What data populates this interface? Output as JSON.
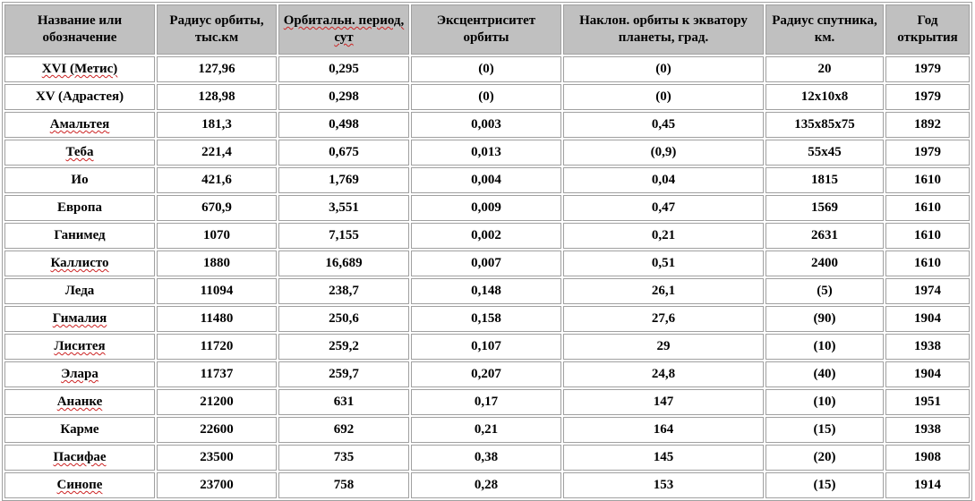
{
  "table": {
    "headers": [
      "Название или обозначение",
      "Радиус орбиты, тыс.км",
      "Орбитальн. период, сут",
      "Эксцентриситет орбиты",
      "Наклон. орбиты к экватору планеты, град.",
      "Радиус спутника, км.",
      "Год открытия"
    ],
    "rows": [
      [
        "XVI (Метис)",
        "127,96",
        "0,295",
        "(0)",
        "(0)",
        "20",
        "1979"
      ],
      [
        "XV (Адрастея)",
        "128,98",
        "0,298",
        "(0)",
        "(0)",
        "12x10x8",
        "1979"
      ],
      [
        "Амальтея",
        "181,3",
        "0,498",
        "0,003",
        "0,45",
        "135x85x75",
        "1892"
      ],
      [
        "Теба",
        "221,4",
        "0,675",
        "0,013",
        "(0,9)",
        "55x45",
        "1979"
      ],
      [
        "Ио",
        "421,6",
        "1,769",
        "0,004",
        "0,04",
        "1815",
        "1610"
      ],
      [
        "Европа",
        "670,9",
        "3,551",
        "0,009",
        "0,47",
        "1569",
        "1610"
      ],
      [
        "Ганимед",
        "1070",
        "7,155",
        "0,002",
        "0,21",
        "2631",
        "1610"
      ],
      [
        "Каллисто",
        "1880",
        "16,689",
        "0,007",
        "0,51",
        "2400",
        "1610"
      ],
      [
        "Леда",
        "11094",
        "238,7",
        "0,148",
        "26,1",
        "(5)",
        "1974"
      ],
      [
        "Гималия",
        "11480",
        "250,6",
        "0,158",
        "27,6",
        "(90)",
        "1904"
      ],
      [
        "Лиситея",
        "11720",
        "259,2",
        "0,107",
        "29",
        "(10)",
        "1938"
      ],
      [
        "Элара",
        "11737",
        "259,7",
        "0,207",
        "24,8",
        "(40)",
        "1904"
      ],
      [
        "Ананке",
        "21200",
        "631",
        "0,17",
        "147",
        "(10)",
        "1951"
      ],
      [
        "Карме",
        "22600",
        "692",
        "0,21",
        "164",
        "(15)",
        "1938"
      ],
      [
        "Пасифае",
        "23500",
        "735",
        "0,38",
        "145",
        "(20)",
        "1908"
      ],
      [
        "Синопе",
        "23700",
        "758",
        "0,28",
        "153",
        "(15)",
        "1914"
      ]
    ]
  },
  "colors": {
    "header_bg": "#c0c0c0",
    "border": "#a0a0a0",
    "spellcheck_underline": "#cc2222"
  }
}
